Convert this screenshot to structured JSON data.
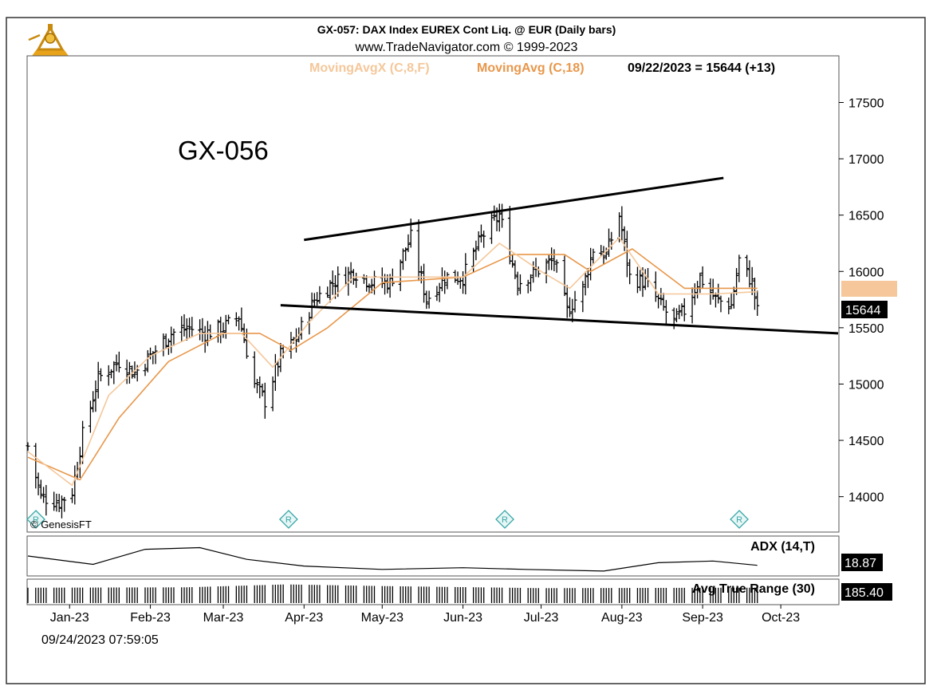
{
  "header": {
    "title": "GX-057:  DAX Index EUREX Cont Liq. @ EUR  (Daily bars)",
    "website": "www.TradeNavigator.com © 1999-2023",
    "indicator_1": "MovingAvgX (C,8,F)",
    "indicator_2": "MovingAvg (C,18)",
    "last_value": "09/22/2023 = 15644 (+13)"
  },
  "annotation": "GX-056",
  "watermark": "© GenesisFT",
  "timestamp": "09/24/2023 07:59:05",
  "price_label": "15644",
  "adx": {
    "label": "ADX (14,T)",
    "value": "18.87"
  },
  "atr": {
    "label": "Avg True Range (30)",
    "value": "185.40"
  },
  "event_marker_glyph": "R",
  "colors": {
    "bars": "#000000",
    "ema": "#f5c79a",
    "sma": "#e8974a",
    "trendline": "#000000",
    "panel_border": "#555555",
    "marker": "#3aa8a8"
  },
  "chart_data": {
    "type": "bar",
    "bar_style": "ohlc-daily",
    "x_ticks": [
      "Jan-23",
      "Feb-23",
      "Mar-23",
      "Apr-23",
      "May-23",
      "Jun-23",
      "Jul-23",
      "Aug-23",
      "Sep-23",
      "Oct-23"
    ],
    "y_ticks": [
      14000,
      14500,
      15000,
      15500,
      16000,
      16500,
      17000,
      17500
    ],
    "ylim": [
      13700,
      17900
    ],
    "x_domain": [
      "2022-12-16",
      "2023-10-23"
    ],
    "closes": [
      {
        "date": "2022-12-16",
        "close": 14450
      },
      {
        "date": "2022-12-21",
        "close": 14000
      },
      {
        "date": "2022-12-28",
        "close": 13950
      },
      {
        "date": "2023-01-02",
        "close": 14050
      },
      {
        "date": "2023-01-06",
        "close": 14550
      },
      {
        "date": "2023-01-12",
        "close": 15050
      },
      {
        "date": "2023-01-20",
        "close": 15200
      },
      {
        "date": "2023-01-26",
        "close": 15100
      },
      {
        "date": "2023-02-03",
        "close": 15300
      },
      {
        "date": "2023-02-09",
        "close": 15450
      },
      {
        "date": "2023-02-16",
        "close": 15500
      },
      {
        "date": "2023-02-22",
        "close": 15450
      },
      {
        "date": "2023-03-01",
        "close": 15500
      },
      {
        "date": "2023-03-07",
        "close": 15600
      },
      {
        "date": "2023-03-13",
        "close": 15000
      },
      {
        "date": "2023-03-17",
        "close": 14850
      },
      {
        "date": "2023-03-23",
        "close": 15250
      },
      {
        "date": "2023-03-29",
        "close": 15400
      },
      {
        "date": "2023-04-05",
        "close": 15750
      },
      {
        "date": "2023-04-12",
        "close": 15900
      },
      {
        "date": "2023-04-20",
        "close": 16000
      },
      {
        "date": "2023-04-27",
        "close": 15900
      },
      {
        "date": "2023-05-04",
        "close": 15900
      },
      {
        "date": "2023-05-12",
        "close": 16300
      },
      {
        "date": "2023-05-18",
        "close": 15750
      },
      {
        "date": "2023-05-25",
        "close": 15950
      },
      {
        "date": "2023-06-01",
        "close": 15950
      },
      {
        "date": "2023-06-08",
        "close": 16300
      },
      {
        "date": "2023-06-15",
        "close": 16500
      },
      {
        "date": "2023-06-22",
        "close": 15900
      },
      {
        "date": "2023-06-29",
        "close": 16000
      },
      {
        "date": "2023-07-06",
        "close": 16100
      },
      {
        "date": "2023-07-11",
        "close": 15650
      },
      {
        "date": "2023-07-17",
        "close": 15850
      },
      {
        "date": "2023-07-21",
        "close": 16200
      },
      {
        "date": "2023-07-26",
        "close": 16150
      },
      {
        "date": "2023-07-31",
        "close": 16500
      },
      {
        "date": "2023-08-04",
        "close": 15950
      },
      {
        "date": "2023-08-10",
        "close": 15900
      },
      {
        "date": "2023-08-16",
        "close": 15700
      },
      {
        "date": "2023-08-21",
        "close": 15550
      },
      {
        "date": "2023-08-25",
        "close": 15650
      },
      {
        "date": "2023-08-31",
        "close": 15950
      },
      {
        "date": "2023-09-06",
        "close": 15750
      },
      {
        "date": "2023-09-12",
        "close": 15700
      },
      {
        "date": "2023-09-15",
        "close": 16100
      },
      {
        "date": "2023-09-20",
        "close": 15900
      },
      {
        "date": "2023-09-22",
        "close": 15644
      }
    ],
    "moving_average_fast": {
      "name": "MovingAvgX (C,8,F)",
      "points": [
        {
          "date": "2022-12-16",
          "value": 14400
        },
        {
          "date": "2023-01-02",
          "value": 14100
        },
        {
          "date": "2023-01-16",
          "value": 14900
        },
        {
          "date": "2023-02-01",
          "value": 15250
        },
        {
          "date": "2023-02-20",
          "value": 15450
        },
        {
          "date": "2023-03-08",
          "value": 15450
        },
        {
          "date": "2023-03-20",
          "value": 15150
        },
        {
          "date": "2023-04-03",
          "value": 15550
        },
        {
          "date": "2023-04-20",
          "value": 15950
        },
        {
          "date": "2023-05-15",
          "value": 15950
        },
        {
          "date": "2023-06-01",
          "value": 15950
        },
        {
          "date": "2023-06-15",
          "value": 16250
        },
        {
          "date": "2023-07-01",
          "value": 16000
        },
        {
          "date": "2023-07-12",
          "value": 15850
        },
        {
          "date": "2023-07-31",
          "value": 16300
        },
        {
          "date": "2023-08-15",
          "value": 15800
        },
        {
          "date": "2023-09-05",
          "value": 15800
        },
        {
          "date": "2023-09-22",
          "value": 15820
        }
      ]
    },
    "moving_average_slow": {
      "name": "MovingAvg (C,18)",
      "points": [
        {
          "date": "2022-12-16",
          "value": 14350
        },
        {
          "date": "2023-01-05",
          "value": 14150
        },
        {
          "date": "2023-01-20",
          "value": 14700
        },
        {
          "date": "2023-02-08",
          "value": 15200
        },
        {
          "date": "2023-03-01",
          "value": 15450
        },
        {
          "date": "2023-03-15",
          "value": 15450
        },
        {
          "date": "2023-03-27",
          "value": 15300
        },
        {
          "date": "2023-04-10",
          "value": 15500
        },
        {
          "date": "2023-05-01",
          "value": 15900
        },
        {
          "date": "2023-06-01",
          "value": 15950
        },
        {
          "date": "2023-06-20",
          "value": 16150
        },
        {
          "date": "2023-07-10",
          "value": 16150
        },
        {
          "date": "2023-07-20",
          "value": 16000
        },
        {
          "date": "2023-08-05",
          "value": 16200
        },
        {
          "date": "2023-08-25",
          "value": 15850
        },
        {
          "date": "2023-09-22",
          "value": 15850
        }
      ]
    },
    "trendlines": [
      {
        "from": {
          "date": "2023-04-01",
          "value": 16280
        },
        "to": {
          "date": "2023-09-09",
          "value": 16830
        }
      },
      {
        "from": {
          "date": "2023-03-23",
          "value": 15700
        },
        "to": {
          "date": "2023-10-23",
          "value": 15450
        }
      }
    ],
    "event_markers": [
      "2022-12-16",
      "2023-03-23",
      "2023-06-14",
      "2023-09-12"
    ],
    "adx_series": [
      {
        "date": "2022-12-16",
        "value": 30
      },
      {
        "date": "2023-01-10",
        "value": 20
      },
      {
        "date": "2023-01-30",
        "value": 38
      },
      {
        "date": "2023-02-20",
        "value": 40
      },
      {
        "date": "2023-03-10",
        "value": 26
      },
      {
        "date": "2023-04-01",
        "value": 18
      },
      {
        "date": "2023-05-01",
        "value": 14
      },
      {
        "date": "2023-06-01",
        "value": 16
      },
      {
        "date": "2023-06-25",
        "value": 14
      },
      {
        "date": "2023-07-25",
        "value": 12
      },
      {
        "date": "2023-08-15",
        "value": 22
      },
      {
        "date": "2023-09-05",
        "value": 24
      },
      {
        "date": "2023-09-22",
        "value": 18.87
      }
    ],
    "adx_range": [
      10,
      50
    ],
    "atr_range": [
      0,
      400
    ],
    "atr_series": [
      {
        "date": "2022-12-16",
        "value": 185
      },
      {
        "date": "2023-02-15",
        "value": 190
      },
      {
        "date": "2023-03-25",
        "value": 225
      },
      {
        "date": "2023-05-01",
        "value": 205
      },
      {
        "date": "2023-07-01",
        "value": 180
      },
      {
        "date": "2023-09-22",
        "value": 185.4
      }
    ]
  }
}
